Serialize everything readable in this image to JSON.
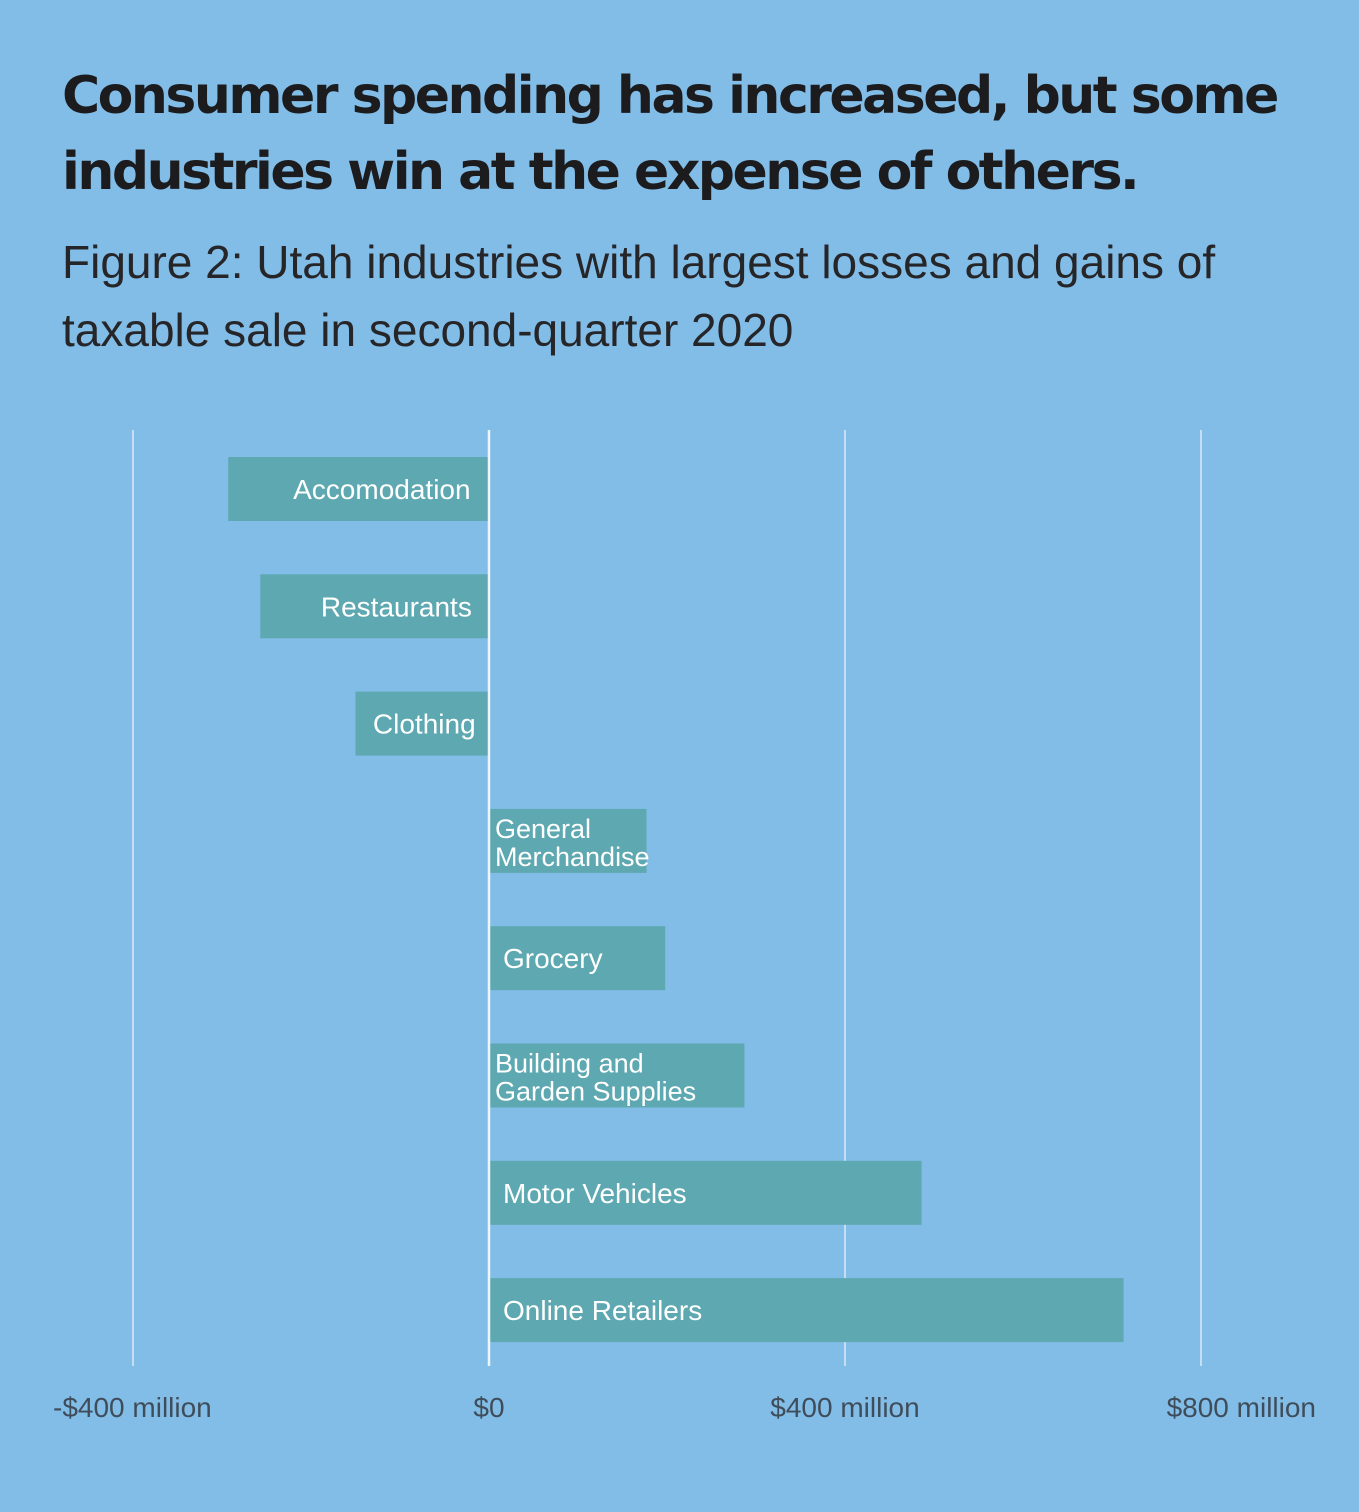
{
  "headline": "Consumer spending has increased, but some industries win at the expense of others.",
  "subtitle": "Figure 2: Utah industries with largest losses and gains of taxable sale in second-quarter 2020",
  "colors": {
    "background": "#82bde8",
    "bar": "#5ea8b1",
    "gridline": "#dbe9f4",
    "zero_line": "#eef5fa",
    "bar_label": "#ffffff",
    "tick_label": "#3f4d5a"
  },
  "chart_data": {
    "type": "bar",
    "orientation": "horizontal",
    "title": "Figure 2: Utah industries with largest losses and gains of taxable sale in second-quarter 2020",
    "categories": [
      "Accomodation",
      "Restaurants",
      "Clothing",
      "General Merchandise",
      "Grocery",
      "Building and Garden Supplies",
      "Motor Vehicles",
      "Online Retailers"
    ],
    "category_label_lines": [
      [
        "Accomodation"
      ],
      [
        "Restaurants"
      ],
      [
        "Clothing"
      ],
      [
        "General",
        "Merchandise"
      ],
      [
        "Grocery"
      ],
      [
        "Building and",
        "Garden Supplies"
      ],
      [
        "Motor Vehicles"
      ],
      [
        "Online Retailers"
      ]
    ],
    "values": [
      -293,
      -257,
      -150,
      177,
      198,
      287,
      486,
      713
    ],
    "unit": "million USD",
    "xlim": [
      -400,
      800
    ],
    "xticks": [
      -400,
      0,
      400,
      800
    ],
    "xtick_labels": [
      "-$400 million",
      "$0",
      "$400 million",
      "$800 million"
    ],
    "grid": true,
    "legend": "none",
    "labels_inside_bars": true
  }
}
